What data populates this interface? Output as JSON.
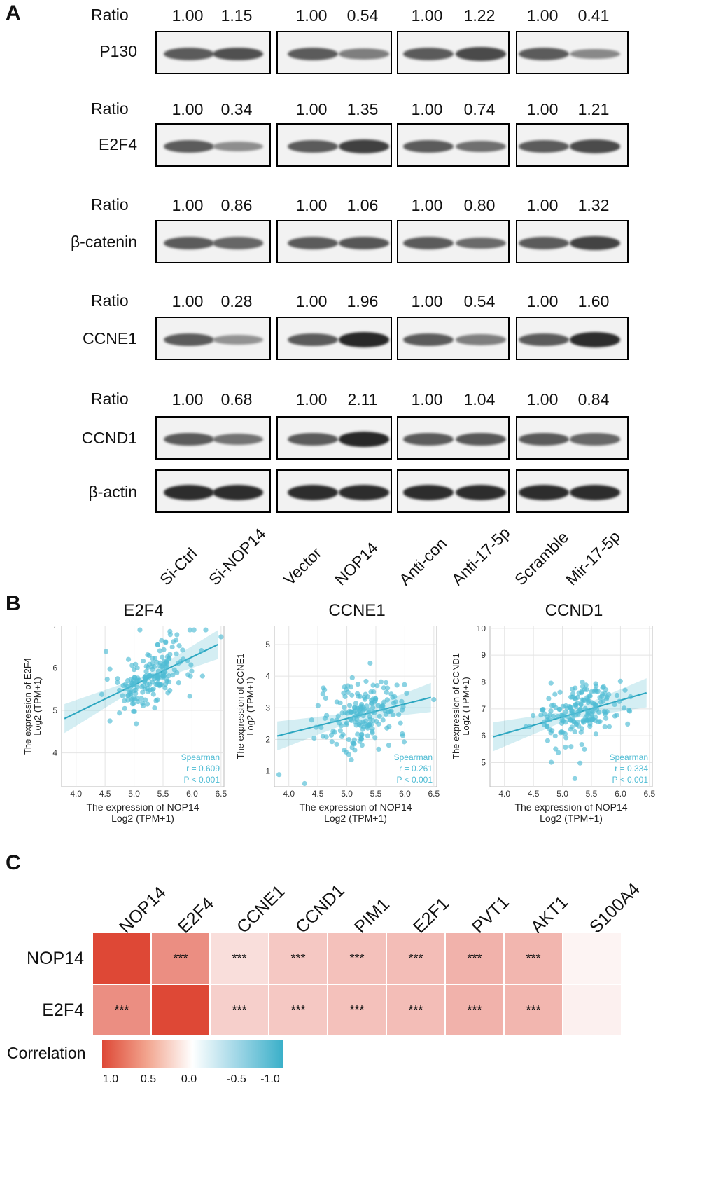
{
  "panels": {
    "a": "A",
    "b": "B",
    "c": "C"
  },
  "western": {
    "ratio_label": "Ratio",
    "lanes": [
      "Si-Ctrl",
      "Si-NOP14",
      "Vector",
      "NOP14",
      "Anti-con",
      "Anti-17-5p",
      "Scramble",
      "Mir-17-5p"
    ],
    "rows": [
      {
        "protein": "P130",
        "ratios": [
          "1.00",
          "1.15",
          "1.00",
          "0.54",
          "1.00",
          "1.22",
          "1.00",
          "0.41"
        ]
      },
      {
        "protein": "E2F4",
        "ratios": [
          "1.00",
          "0.34",
          "1.00",
          "1.35",
          "1.00",
          "0.74",
          "1.00",
          "1.21"
        ]
      },
      {
        "protein": "β-catenin",
        "ratios": [
          "1.00",
          "0.86",
          "1.00",
          "1.06",
          "1.00",
          "0.80",
          "1.00",
          "1.32"
        ]
      },
      {
        "protein": "CCNE1",
        "ratios": [
          "1.00",
          "0.28",
          "1.00",
          "1.96",
          "1.00",
          "0.54",
          "1.00",
          "1.60"
        ]
      },
      {
        "protein": "CCND1",
        "ratios": [
          "1.00",
          "0.68",
          "1.00",
          "2.11",
          "1.00",
          "1.04",
          "1.00",
          "0.84"
        ]
      },
      {
        "protein": "β-actin",
        "ratios": []
      }
    ]
  },
  "chart_data": [
    {
      "type": "scatter",
      "title": "E2F4",
      "xlabel": "The expression of NOP14",
      "xlabel2": "Log2 (TPM+1)",
      "ylabel": "The expression of E2F4",
      "ylabel2": "Log2 (TPM+1)",
      "xlim": [
        3.75,
        6.55
      ],
      "ylim": [
        3.2,
        7.0
      ],
      "xticks": [
        "4.0",
        "4.5",
        "5.0",
        "5.5",
        "6.0",
        "6.5"
      ],
      "yticks": [
        "4",
        "5",
        "6",
        "7"
      ],
      "method": "Spearman",
      "r": "r = 0.609",
      "p": "P < 0.001",
      "fit": {
        "slope": 0.66,
        "intercept": 2.3
      }
    },
    {
      "type": "scatter",
      "title": "CCNE1",
      "xlabel": "The expression of NOP14",
      "xlabel2": "Log2 (TPM+1)",
      "ylabel": "The expression of CCNE1",
      "ylabel2": "Log2 (TPM+1)",
      "xlim": [
        3.75,
        6.55
      ],
      "ylim": [
        0.5,
        5.6
      ],
      "xticks": [
        "4.0",
        "4.5",
        "5.0",
        "5.5",
        "6.0",
        "6.5"
      ],
      "yticks": [
        "1",
        "2",
        "3",
        "4",
        "5"
      ],
      "method": "Spearman",
      "r": "r = 0.261",
      "p": "P < 0.001",
      "fit": {
        "slope": 0.46,
        "intercept": 0.36
      }
    },
    {
      "type": "scatter",
      "title": "CCND1",
      "xlabel": "The expression of NOP14",
      "xlabel2": "Log2 (TPM+1)",
      "ylabel": "The expression of CCND1",
      "ylabel2": "Log2 (TPM+1)",
      "xlim": [
        3.75,
        6.55
      ],
      "ylim": [
        4.1,
        10.1
      ],
      "xticks": [
        "4.0",
        "4.5",
        "5.0",
        "5.5",
        "6.0",
        "6.5"
      ],
      "yticks": [
        "5",
        "6",
        "7",
        "8",
        "9",
        "10"
      ],
      "method": "Spearman",
      "r": "r = 0.334",
      "p": "P < 0.001",
      "fit": {
        "slope": 0.62,
        "intercept": 3.6
      }
    },
    {
      "type": "heatmap",
      "legend_title": "Correlation",
      "legend_ticks": [
        "1.0",
        "0.5",
        "0.0",
        "-0.5",
        "-1.0"
      ],
      "columns": [
        "NOP14",
        "E2F4",
        "CCNE1",
        "CCND1",
        "PIM1",
        "E2F1",
        "PVT1",
        "AKT1",
        "S100A4"
      ],
      "rows": [
        {
          "name": "NOP14",
          "values": [
            1.0,
            0.62,
            0.18,
            0.3,
            0.34,
            0.36,
            0.42,
            0.4,
            0.06
          ],
          "stars": [
            "",
            "***",
            "***",
            "***",
            "***",
            "***",
            "***",
            "***",
            ""
          ]
        },
        {
          "name": "E2F4",
          "values": [
            0.62,
            1.0,
            0.26,
            0.3,
            0.34,
            0.36,
            0.42,
            0.4,
            0.08
          ],
          "stars": [
            "***",
            "",
            "***",
            "***",
            "***",
            "***",
            "***",
            "***",
            ""
          ]
        }
      ]
    }
  ]
}
